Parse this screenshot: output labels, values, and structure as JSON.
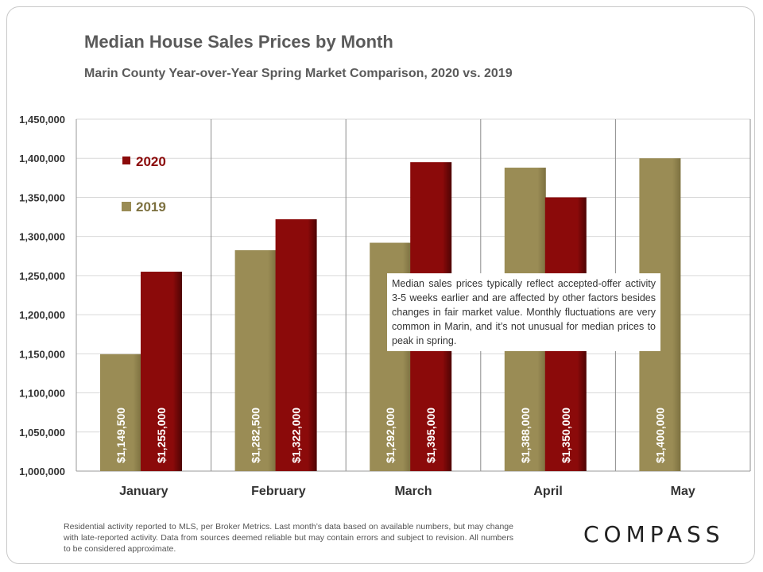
{
  "chart_data": {
    "type": "bar",
    "title": "Median House Sales Prices by Month",
    "subtitle": "Marin County Year-over-Year Spring Market Comparison, 2020 vs. 2019",
    "categories": [
      "January",
      "February",
      "March",
      "April",
      "May"
    ],
    "series": [
      {
        "name": "2019",
        "color": "#9a8c55",
        "values": [
          1149500,
          1282500,
          1292000,
          1388000,
          1400000
        ],
        "labels": [
          "$1,149,500",
          "$1,282,500",
          "$1,292,000",
          "$1,388,000",
          "$1,400,000"
        ]
      },
      {
        "name": "2020",
        "color": "#8b0a0a",
        "values": [
          1255000,
          1322000,
          1395000,
          1350000,
          null
        ],
        "labels": [
          "$1,255,000",
          "$1,322,000",
          "$1,395,000",
          "$1,350,000",
          null
        ]
      }
    ],
    "ylim": [
      1000000,
      1450000
    ],
    "yticks": [
      1000000,
      1050000,
      1100000,
      1150000,
      1200000,
      1250000,
      1300000,
      1350000,
      1400000,
      1450000
    ],
    "ytick_labels": [
      "1,000,000",
      "1,050,000",
      "1,100,000",
      "1,150,000",
      "1,200,000",
      "1,250,000",
      "1,300,000",
      "1,350,000",
      "1,400,000",
      "1,450,000"
    ],
    "legend_order": [
      "2020",
      "2019"
    ],
    "legend_placement": "top-left",
    "grid": true,
    "xlabel": "",
    "ylabel": ""
  },
  "annotation": "Median sales prices typically reflect accepted-offer activity 3-5 weeks earlier and are affected by other factors besides changes in fair market value. Monthly fluctuations are very common in Marin, and it’s not unusual for median prices to peak in spring.",
  "footer": "Residential activity reported to MLS, per Broker Metrics. Last month’s data based on available numbers, but may change with late-reported activity. Data from sources deemed reliable but may contain errors and subject to revision. All numbers to be considered approximate.",
  "brand": {
    "logo_text": "COMPASS"
  }
}
